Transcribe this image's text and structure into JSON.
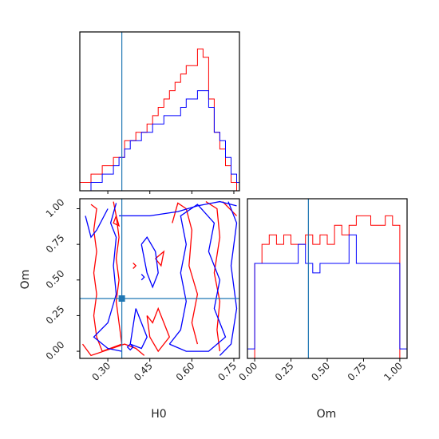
{
  "chart_data": {
    "type": "corner",
    "parameters": [
      "H0",
      "Om"
    ],
    "truths": {
      "H0": 0.35,
      "Om": 0.37
    },
    "colors": {
      "red": "#ff0000",
      "blue": "#0000ff",
      "truth": "#1f77b4"
    },
    "panels": [
      {
        "id": "hist-H0",
        "type": "histogram",
        "parameter": "H0",
        "xlim": [
          0.2,
          0.77
        ],
        "bin_edges": [
          0.2,
          0.22,
          0.24,
          0.26,
          0.28,
          0.3,
          0.32,
          0.34,
          0.36,
          0.38,
          0.4,
          0.42,
          0.44,
          0.46,
          0.48,
          0.5,
          0.52,
          0.54,
          0.56,
          0.58,
          0.6,
          0.62,
          0.64,
          0.66,
          0.68,
          0.7,
          0.72,
          0.74,
          0.76,
          0.77
        ],
        "series": [
          {
            "color": "red",
            "values": [
              1,
              1,
              2,
              2,
              3,
              3,
              4,
              4,
              6,
              6,
              7,
              7,
              8,
              9,
              10,
              11,
              12,
              13,
              14,
              15,
              15,
              17,
              16,
              11,
              7,
              5,
              3,
              1,
              0
            ]
          },
          {
            "color": "blue",
            "values": [
              0,
              0,
              1,
              1,
              2,
              2,
              3,
              4,
              5,
              6,
              6,
              7,
              7,
              8,
              8,
              9,
              9,
              9,
              10,
              11,
              11,
              12,
              12,
              10,
              7,
              6,
              4,
              2,
              1
            ]
          }
        ]
      },
      {
        "id": "contour-H0-Om",
        "type": "contour",
        "x": "H0",
        "y": "Om",
        "xlim": [
          0.2,
          0.77
        ],
        "ylim": [
          -0.05,
          1.07
        ],
        "xticks": [
          "0.30",
          "0.45",
          "0.60",
          "0.75"
        ],
        "yticks": [
          "0.00",
          "0.25",
          "0.50",
          "0.75",
          "1.00"
        ],
        "series": [
          {
            "color": "red",
            "contours": [
              [
                [
                  0.24,
                  1.03
                ],
                [
                  0.26,
                  1.0
                ],
                [
                  0.25,
                  0.85
                ],
                [
                  0.26,
                  0.7
                ],
                [
                  0.25,
                  0.55
                ],
                [
                  0.26,
                  0.4
                ],
                [
                  0.25,
                  0.25
                ],
                [
                  0.26,
                  0.1
                ],
                [
                  0.28,
                  0.0
                ],
                [
                  0.35,
                  0.05
                ],
                [
                  0.34,
                  0.2
                ],
                [
                  0.33,
                  0.35
                ],
                [
                  0.34,
                  0.5
                ],
                [
                  0.33,
                  0.65
                ],
                [
                  0.34,
                  0.8
                ],
                [
                  0.33,
                  0.95
                ],
                [
                  0.32,
                  1.05
                ]
              ],
              [
                [
                  0.21,
                  0.05
                ],
                [
                  0.24,
                  -0.03
                ],
                [
                  0.36,
                  0.05
                ],
                [
                  0.4,
                  0.02
                ],
                [
                  0.43,
                  -0.03
                ]
              ],
              [
                [
                  0.53,
                  0.9
                ],
                [
                  0.55,
                  1.04
                ],
                [
                  0.58,
                  1.0
                ],
                [
                  0.6,
                  0.85
                ],
                [
                  0.59,
                  0.6
                ],
                [
                  0.62,
                  0.4
                ],
                [
                  0.6,
                  0.2
                ],
                [
                  0.62,
                  0.05
                ]
              ],
              [
                [
                  0.65,
                  1.05
                ],
                [
                  0.69,
                  1.0
                ],
                [
                  0.7,
                  0.8
                ],
                [
                  0.68,
                  0.55
                ],
                [
                  0.7,
                  0.35
                ],
                [
                  0.69,
                  0.15
                ],
                [
                  0.7,
                  0.0
                ]
              ],
              [
                [
                  0.71,
                  1.05
                ],
                [
                  0.76,
                  0.95
                ]
              ],
              [
                [
                  0.44,
                  0.25
                ],
                [
                  0.46,
                  0.2
                ],
                [
                  0.48,
                  0.3
                ],
                [
                  0.5,
                  0.2
                ],
                [
                  0.52,
                  0.1
                ],
                [
                  0.48,
                  0.0
                ],
                [
                  0.45,
                  0.1
                ],
                [
                  0.44,
                  0.25
                ]
              ],
              [
                [
                  0.47,
                  0.65
                ],
                [
                  0.49,
                  0.6
                ],
                [
                  0.5,
                  0.7
                ],
                [
                  0.47,
                  0.65
                ]
              ],
              [
                [
                  0.39,
                  0.58
                ],
                [
                  0.4,
                  0.6
                ],
                [
                  0.39,
                  0.62
                ]
              ],
              [
                [
                  0.33,
                  0.95
                ],
                [
                  0.32,
                  0.9
                ],
                [
                  0.34,
                  0.88
                ],
                [
                  0.33,
                  0.95
                ]
              ]
            ]
          },
          {
            "color": "blue",
            "contours": [
              [
                [
                  0.33,
                  1.04
                ],
                [
                  0.31,
                  0.9
                ],
                [
                  0.33,
                  0.8
                ],
                [
                  0.32,
                  0.6
                ],
                [
                  0.33,
                  0.4
                ],
                [
                  0.3,
                  0.2
                ],
                [
                  0.25,
                  0.1
                ],
                [
                  0.3,
                  0.02
                ],
                [
                  0.35,
                  0.0
                ]
              ],
              [
                [
                  0.22,
                  0.95
                ],
                [
                  0.24,
                  0.8
                ],
                [
                  0.26,
                  0.85
                ],
                [
                  0.3,
                  1.0
                ]
              ],
              [
                [
                  0.34,
                  0.95
                ],
                [
                  0.45,
                  0.95
                ],
                [
                  0.55,
                  0.98
                ],
                [
                  0.62,
                  1.02
                ],
                [
                  0.7,
                  1.05
                ],
                [
                  0.76,
                  1.02
                ]
              ],
              [
                [
                  0.42,
                  0.75
                ],
                [
                  0.44,
                  0.8
                ],
                [
                  0.47,
                  0.7
                ],
                [
                  0.48,
                  0.55
                ],
                [
                  0.46,
                  0.45
                ],
                [
                  0.44,
                  0.55
                ],
                [
                  0.42,
                  0.75
                ]
              ],
              [
                [
                  0.4,
                  0.3
                ],
                [
                  0.42,
                  0.2
                ],
                [
                  0.44,
                  0.1
                ],
                [
                  0.42,
                  0.02
                ],
                [
                  0.38,
                  0.05
                ],
                [
                  0.4,
                  0.3
                ]
              ],
              [
                [
                  0.52,
                  0.05
                ],
                [
                  0.56,
                  0.15
                ],
                [
                  0.58,
                  0.35
                ],
                [
                  0.56,
                  0.55
                ],
                [
                  0.58,
                  0.75
                ],
                [
                  0.56,
                  0.95
                ],
                [
                  0.62,
                  1.03
                ],
                [
                  0.68,
                  0.9
                ],
                [
                  0.66,
                  0.7
                ],
                [
                  0.7,
                  0.5
                ],
                [
                  0.68,
                  0.3
                ],
                [
                  0.72,
                  0.1
                ],
                [
                  0.66,
                  0.0
                ],
                [
                  0.58,
                  0.0
                ],
                [
                  0.52,
                  0.05
                ]
              ],
              [
                [
                  0.73,
                  1.05
                ],
                [
                  0.76,
                  0.9
                ],
                [
                  0.74,
                  0.6
                ],
                [
                  0.76,
                  0.3
                ],
                [
                  0.74,
                  0.05
                ],
                [
                  0.7,
                  -0.03
                ]
              ],
              [
                [
                  0.38,
                  0.05
                ],
                [
                  0.39,
                  0.03
                ],
                [
                  0.38,
                  0.01
                ],
                [
                  0.37,
                  0.03
                ],
                [
                  0.38,
                  0.05
                ]
              ],
              [
                [
                  0.42,
                  0.5
                ],
                [
                  0.43,
                  0.52
                ],
                [
                  0.42,
                  0.54
                ]
              ]
            ]
          }
        ]
      },
      {
        "id": "hist-Om",
        "type": "histogram",
        "parameter": "Om",
        "xlim": [
          -0.05,
          1.05
        ],
        "bin_edges": [
          -0.05,
          0.0,
          0.05,
          0.1,
          0.15,
          0.2,
          0.25,
          0.3,
          0.35,
          0.4,
          0.45,
          0.5,
          0.55,
          0.6,
          0.65,
          0.7,
          0.75,
          0.8,
          0.85,
          0.9,
          0.95,
          1.0,
          1.05
        ],
        "series": [
          {
            "color": "red",
            "values": [
              0,
              10,
              12,
              13,
              12,
              13,
              12,
              12,
              13,
              12,
              13,
              12,
              14,
              13,
              14,
              15,
              15,
              14,
              14,
              15,
              14,
              0
            ]
          },
          {
            "color": "blue",
            "values": [
              1,
              10,
              10,
              10,
              10,
              10,
              10,
              12,
              10,
              9,
              10,
              10,
              10,
              10,
              13,
              10,
              10,
              10,
              10,
              10,
              10,
              1
            ]
          }
        ]
      }
    ],
    "axis_labels": {
      "H0": "H0",
      "Om": "Om"
    },
    "tick_labels": {
      "H0": [
        "0.30",
        "0.45",
        "0.60",
        "0.75"
      ],
      "Om": [
        "0.00",
        "0.25",
        "0.50",
        "0.75",
        "1.00"
      ]
    }
  }
}
